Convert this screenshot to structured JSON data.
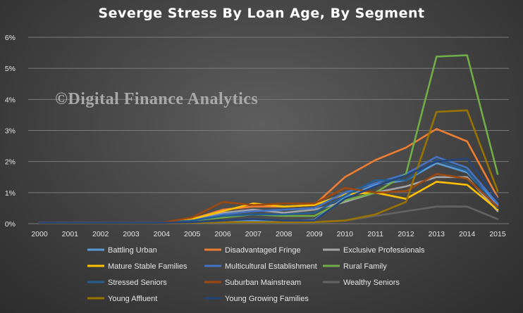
{
  "chart_data": {
    "type": "line",
    "title": "Severge Stress By Loan Age, By Segment",
    "watermark": "©Digital Finance Analytics",
    "xlabel": "",
    "ylabel": "",
    "categories": [
      "2000",
      "2001",
      "2002",
      "2003",
      "2004",
      "2005",
      "2006",
      "2007",
      "2008",
      "2009",
      "2010",
      "2011",
      "2012",
      "2013",
      "2014",
      "2015"
    ],
    "ylim": [
      0,
      6
    ],
    "yticks": [
      0,
      1,
      2,
      3,
      4,
      5,
      6
    ],
    "ytick_labels": [
      "0%",
      "1%",
      "2%",
      "3%",
      "4%",
      "5%",
      "6%"
    ],
    "grid": true,
    "legend_position": "bottom",
    "series": [
      {
        "name": "Battling Urban",
        "color": "#5b9bd5",
        "values": [
          0.03,
          0.03,
          0.03,
          0.03,
          0.03,
          0.03,
          0.06,
          0.1,
          0.08,
          0.12,
          0.85,
          1.25,
          1.4,
          1.95,
          1.65,
          0.6
        ]
      },
      {
        "name": "Disadvantaged Fringe",
        "color": "#ed7d31",
        "values": [
          0.03,
          0.03,
          0.03,
          0.03,
          0.03,
          0.15,
          0.45,
          0.55,
          0.55,
          0.6,
          1.5,
          2.05,
          2.45,
          3.05,
          2.65,
          0.85
        ]
      },
      {
        "name": "Exclusive Professionals",
        "color": "#a5a5a5",
        "values": [
          0.02,
          0.02,
          0.02,
          0.02,
          0.02,
          0.1,
          0.35,
          0.45,
          0.35,
          0.45,
          0.7,
          1.0,
          1.2,
          1.5,
          1.5,
          0.4
        ]
      },
      {
        "name": "Mature Stable Families",
        "color": "#ffc000",
        "values": [
          0.03,
          0.03,
          0.03,
          0.03,
          0.03,
          0.15,
          0.4,
          0.65,
          0.55,
          0.6,
          0.95,
          1.0,
          0.8,
          1.35,
          1.25,
          0.45
        ]
      },
      {
        "name": "Multicultural Establishment",
        "color": "#4472c4",
        "values": [
          0.03,
          0.03,
          0.03,
          0.03,
          0.03,
          0.1,
          0.3,
          0.4,
          0.45,
          0.5,
          1.0,
          1.3,
          1.6,
          2.15,
          1.8,
          0.65
        ]
      },
      {
        "name": "Rural Family",
        "color": "#70ad47",
        "values": [
          0.02,
          0.02,
          0.02,
          0.02,
          0.02,
          0.1,
          0.2,
          0.3,
          0.25,
          0.25,
          0.75,
          1.0,
          1.6,
          5.38,
          5.42,
          1.6
        ]
      },
      {
        "name": "Stressed Seniors",
        "color": "#255e91",
        "values": [
          0.03,
          0.03,
          0.03,
          0.03,
          0.03,
          0.1,
          0.25,
          0.3,
          0.3,
          0.35,
          0.9,
          1.4,
          1.4,
          2.05,
          1.7,
          0.5
        ]
      },
      {
        "name": "Suburban Mainstream",
        "color": "#9e480e",
        "values": [
          0.03,
          0.03,
          0.03,
          0.03,
          0.03,
          0.2,
          0.7,
          0.6,
          0.65,
          0.65,
          1.15,
          1.0,
          1.05,
          1.6,
          1.45,
          0.55
        ]
      },
      {
        "name": "Wealthy Seniors",
        "color": "#636363",
        "values": [
          0.02,
          0.02,
          0.02,
          0.02,
          0.02,
          0.03,
          0.05,
          0.05,
          0.05,
          0.05,
          0.1,
          0.25,
          0.4,
          0.55,
          0.55,
          0.15
        ]
      },
      {
        "name": "Young Affluent",
        "color": "#997300",
        "values": [
          0.02,
          0.02,
          0.02,
          0.02,
          0.02,
          0.03,
          0.05,
          0.05,
          0.05,
          0.05,
          0.1,
          0.3,
          0.7,
          3.6,
          3.65,
          1.05
        ]
      },
      {
        "name": "Young Growing Families",
        "color": "#264478",
        "values": [
          0.03,
          0.03,
          0.03,
          0.03,
          0.03,
          0.05,
          0.1,
          0.15,
          0.1,
          0.1,
          0.8,
          1.2,
          1.55,
          2.0,
          2.1,
          0.8
        ]
      }
    ]
  }
}
